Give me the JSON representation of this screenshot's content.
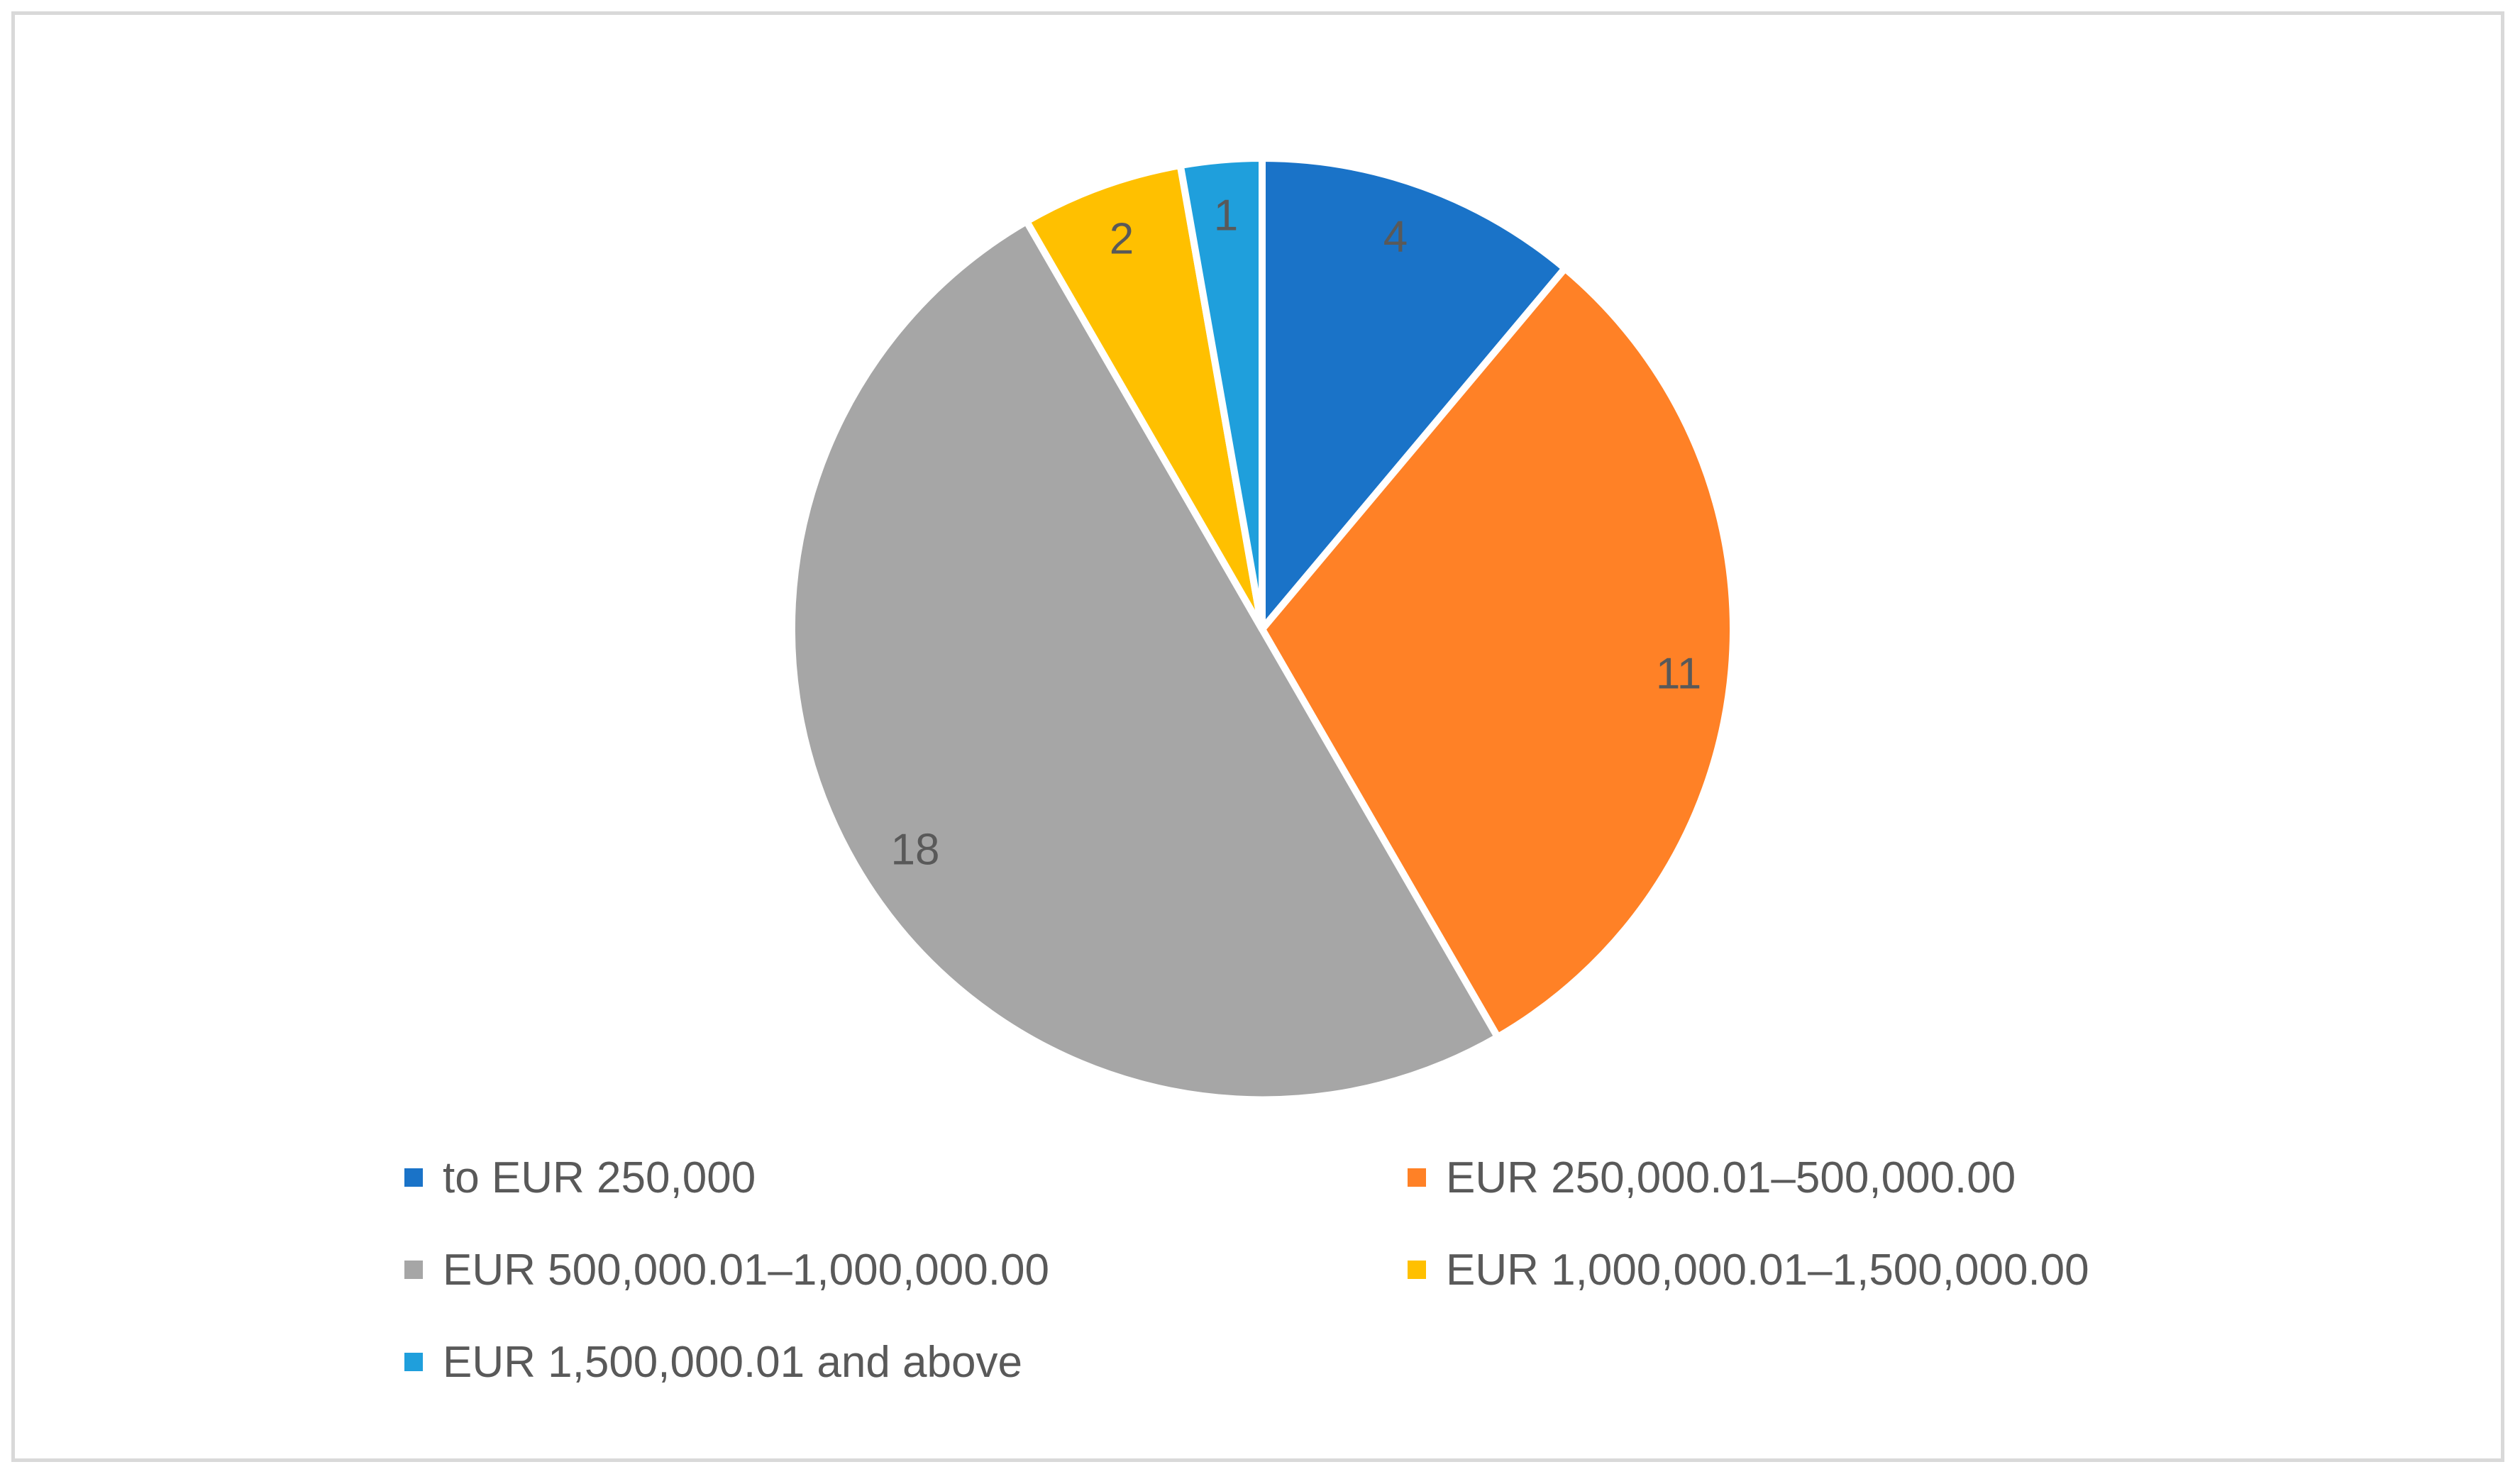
{
  "chart_data": {
    "type": "pie",
    "title": "",
    "categories": [
      "to EUR 250,000",
      "EUR 250,000.01–500,000.00",
      "EUR 500,000.01–1,000,000.00",
      "EUR 1,000,000.01–1,500,000.00",
      "EUR 1,500,000.01 and above"
    ],
    "values": [
      4,
      11,
      18,
      2,
      1
    ],
    "data_labels": [
      "4",
      "11",
      "18",
      "2",
      "1"
    ],
    "colors": [
      "#1a73c8",
      "#ff8126",
      "#a6a6a6",
      "#ffc000",
      "#1f9fdc"
    ],
    "legend_position": "bottom",
    "start_angle": "12 o'clock, clockwise"
  }
}
